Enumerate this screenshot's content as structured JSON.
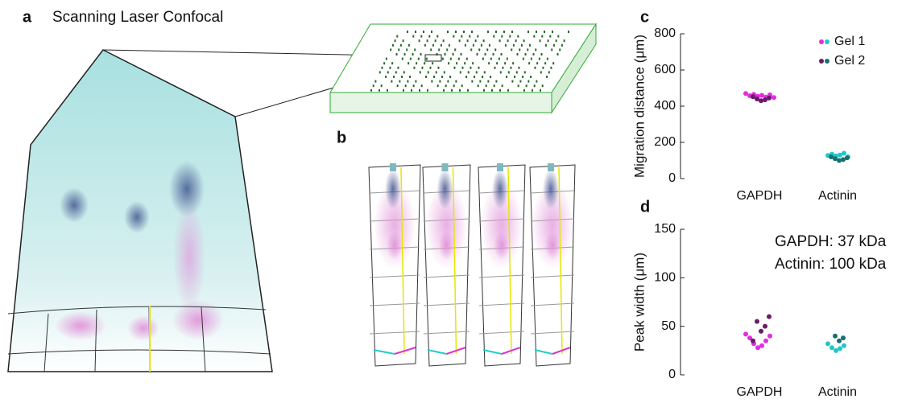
{
  "panels": {
    "a": {
      "label": "a",
      "title": "Scanning Laser Confocal"
    },
    "b": {
      "label": "b"
    }
  },
  "chart_data": [
    {
      "type": "strip",
      "panel_label": "c",
      "ylabel": "Migration distance (μm)",
      "categories": [
        "GAPDH",
        "Actinin"
      ],
      "ylim": [
        0,
        800
      ],
      "yticks": [
        0,
        200,
        400,
        600,
        800
      ],
      "legend": "top-right",
      "series": [
        {
          "name": "Gel 1",
          "colors": [
            "#e22ee0",
            "#22c6cc"
          ],
          "values": [
            [
              455,
              460,
              465,
              450,
              458,
              462,
              470,
              448
            ],
            [
              125,
              130,
              135,
              140,
              128,
              120
            ]
          ]
        },
        {
          "name": "Gel 2",
          "colors": [
            "#6a1a6a",
            "#16706e"
          ],
          "values": [
            [
              430,
              435,
              440,
              445,
              452
            ],
            [
              100,
              105,
              110,
              115,
              120
            ]
          ]
        }
      ]
    },
    {
      "type": "strip",
      "panel_label": "d",
      "ylabel": "Peak width (μm)",
      "categories": [
        "GAPDH",
        "Actinin"
      ],
      "ylim": [
        0,
        150
      ],
      "yticks": [
        0,
        50,
        100,
        150
      ],
      "annotations": [
        {
          "text": "GAPDH: 37 kDa",
          "color": "#e22ee0"
        },
        {
          "text": "Actinin: 100 kDa",
          "color": "#22c6cc"
        }
      ],
      "series": [
        {
          "name": "Gel 1",
          "colors": [
            "#e22ee0",
            "#22c6cc"
          ],
          "values": [
            [
              28,
              30,
              32,
              35,
              38,
              40,
              42
            ],
            [
              25,
              27,
              28,
              30,
              32
            ]
          ]
        },
        {
          "name": "Gel 2",
          "colors": [
            "#6a1a6a",
            "#16706e"
          ],
          "values": [
            [
              45,
              50,
              55,
              60,
              35
            ],
            [
              35,
              38,
              40
            ]
          ]
        }
      ]
    }
  ]
}
